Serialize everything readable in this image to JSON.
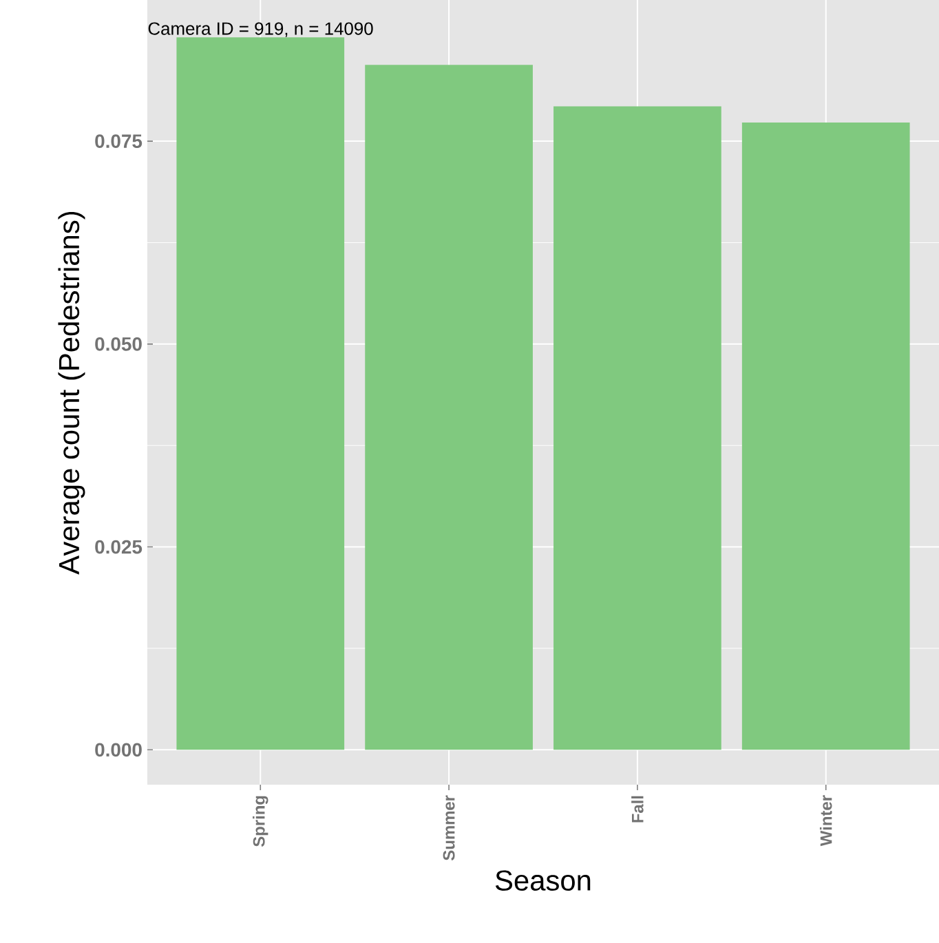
{
  "chart_data": {
    "type": "bar",
    "xlabel": "Season",
    "ylabel": "Average count (Pedestrians)",
    "categories": [
      "Spring",
      "Summer",
      "Fall",
      "Winter"
    ],
    "values": [
      0.0878,
      0.0844,
      0.0793,
      0.0773
    ],
    "color": "#80c97f",
    "ylim": [
      -0.0043,
      0.0924
    ],
    "yticks": [
      {
        "value": 0,
        "label": "0.000"
      },
      {
        "value": 0.025,
        "label": "0.025"
      },
      {
        "value": 0.05,
        "label": "0.050"
      },
      {
        "value": 0.075,
        "label": "0.075"
      }
    ],
    "grid": true,
    "annotations": [
      "Camera ID = 919, n = 14090"
    ]
  }
}
